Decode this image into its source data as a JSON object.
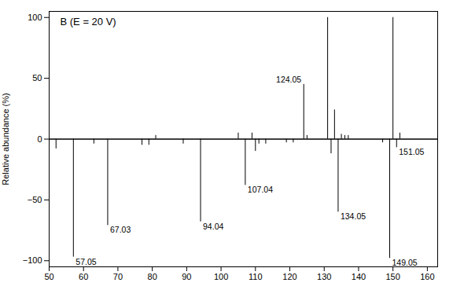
{
  "chart_data": {
    "type": "stem",
    "title": "B (E = 20 V)",
    "ylabel": "Relative abundance (%)",
    "x": [
      52.0,
      57.05,
      63.0,
      67.03,
      77.0,
      79.0,
      81.0,
      89.0,
      94.04,
      105.0,
      107.04,
      109.0,
      110.0,
      111.0,
      113.0,
      119.0,
      121.0,
      124.05,
      125.0,
      131.0,
      132.0,
      133.0,
      134.05,
      135.0,
      136.0,
      137.0,
      147.0,
      149.05,
      150.0,
      151.05,
      152.0
    ],
    "values": [
      -8,
      -97,
      -4,
      -71,
      -5,
      -5,
      3,
      -4,
      -68,
      5,
      -38,
      5,
      -10,
      -4,
      -4,
      -3,
      -3,
      45,
      3,
      100,
      -12,
      24,
      -60,
      4,
      3,
      3,
      -3,
      -98,
      100,
      -7,
      5
    ],
    "color": "#000000",
    "xlim": [
      50,
      163
    ],
    "xticks": [
      50,
      60,
      70,
      80,
      90,
      100,
      110,
      120,
      130,
      140,
      150,
      160
    ],
    "ylim": [
      -105,
      105
    ],
    "yticks": [
      -100,
      -50,
      0,
      50,
      100
    ],
    "grid": false,
    "annotations": [
      {
        "x": 57.05,
        "y": -97,
        "text": "57.05"
      },
      {
        "x": 67.03,
        "y": -71,
        "text": "67.03"
      },
      {
        "x": 94.04,
        "y": -68,
        "text": "94.04"
      },
      {
        "x": 107.04,
        "y": -38,
        "text": "107.04"
      },
      {
        "x": 124.05,
        "y": 45,
        "text": "124.05"
      },
      {
        "x": 134.05,
        "y": -60,
        "text": "134.05"
      },
      {
        "x": 149.05,
        "y": -98,
        "text": "149.05"
      },
      {
        "x": 151.05,
        "y": -7,
        "text": "151.05"
      }
    ]
  }
}
